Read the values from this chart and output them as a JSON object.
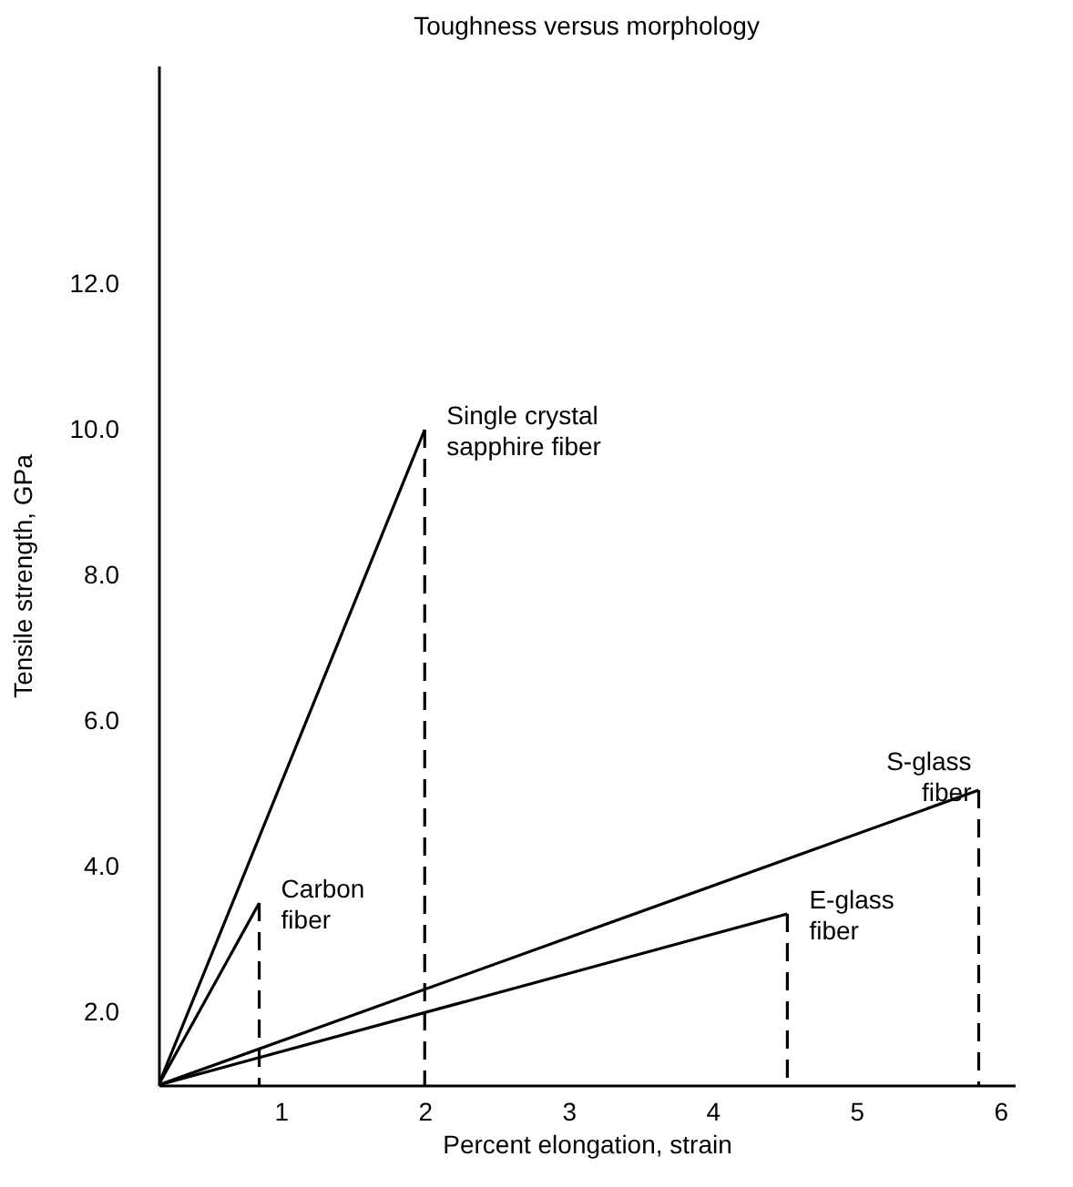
{
  "chart_data": {
    "type": "line",
    "title": "Toughness versus morphology",
    "xlabel": "Percent elongation, strain",
    "ylabel": "Tensile strength, GPa",
    "xlim": [
      0.15,
      6.1
    ],
    "ylim": [
      1.0,
      15.0
    ],
    "xticks": [
      1,
      2,
      3,
      4,
      5,
      6
    ],
    "yticks": [
      {
        "value": 2,
        "label": "2.0"
      },
      {
        "value": 4,
        "label": "4.0"
      },
      {
        "value": 6,
        "label": "6.0"
      },
      {
        "value": 8,
        "label": "8.0"
      },
      {
        "value": 10,
        "label": "10.0"
      },
      {
        "value": 12,
        "label": "12.0"
      }
    ],
    "grid": false,
    "marker": "none",
    "series": [
      {
        "name": "Single crystal\nsapphire fiber",
        "x": [
          0.15,
          2.0
        ],
        "values": [
          1.0,
          10.0
        ],
        "color": "#000000",
        "line_style": "solid"
      },
      {
        "name": "Carbon\nfiber",
        "x": [
          0.15,
          0.85
        ],
        "values": [
          1.0,
          3.5
        ],
        "color": "#000000",
        "line_style": "solid"
      },
      {
        "name": "S-glass\nfiber",
        "x": [
          0.15,
          5.85
        ],
        "values": [
          1.0,
          5.05
        ],
        "color": "#000000",
        "line_style": "solid"
      },
      {
        "name": "E-glass\nfiber",
        "x": [
          0.15,
          4.52
        ],
        "values": [
          1.0,
          3.35
        ],
        "color": "#000000",
        "line_style": "solid"
      },
      {
        "x": [
          2.0,
          2.0
        ],
        "values": [
          10.0,
          1.0
        ],
        "color": "#000000",
        "line_style": "dashed"
      },
      {
        "x": [
          0.85,
          0.85
        ],
        "values": [
          3.5,
          1.0
        ],
        "color": "#000000",
        "line_style": "dashed"
      },
      {
        "x": [
          5.85,
          5.85
        ],
        "values": [
          5.05,
          1.0
        ],
        "color": "#000000",
        "line_style": "dashed"
      },
      {
        "x": [
          4.52,
          4.52
        ],
        "values": [
          3.35,
          1.0
        ],
        "color": "#000000",
        "line_style": "dashed"
      }
    ]
  }
}
